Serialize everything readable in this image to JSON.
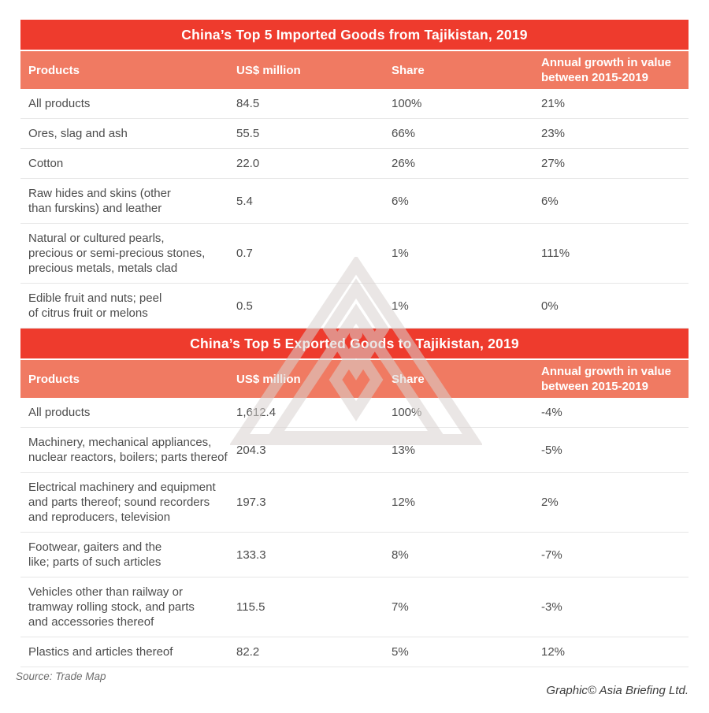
{
  "colors": {
    "accent_red": "#ee3b2d",
    "header_salmon": "#f07a62",
    "row_text": "#4c4c4c",
    "divider": "#e7e7e7"
  },
  "footer": {
    "source": "Source: Trade Map",
    "credit": "Graphic© Asia Briefing Ltd."
  },
  "chart_data": [
    {
      "type": "table",
      "title": "China’s Top 5 Imported Goods from Tajikistan, 2019",
      "columns": [
        "Products",
        "US$ million",
        "Share",
        "Annual growth in value\nbetween 2015-2019"
      ],
      "rows": [
        {
          "product": "All products",
          "usd_million": "84.5",
          "share": "100%",
          "growth": "21%"
        },
        {
          "product": "Ores, slag and ash",
          "usd_million": "55.5",
          "share": "66%",
          "growth": "23%"
        },
        {
          "product": "Cotton",
          "usd_million": "22.0",
          "share": "26%",
          "growth": "27%"
        },
        {
          "product": "Raw hides and skins (other\nthan furskins) and leather",
          "usd_million": "5.4",
          "share": "6%",
          "growth": "6%"
        },
        {
          "product": "Natural or cultured pearls,\nprecious or semi-precious stones,\nprecious metals, metals clad",
          "usd_million": "0.7",
          "share": "1%",
          "growth": "111%"
        },
        {
          "product": "Edible fruit and nuts; peel\nof citrus fruit or melons",
          "usd_million": "0.5",
          "share": "1%",
          "growth": "0%"
        }
      ]
    },
    {
      "type": "table",
      "title": "China’s Top 5 Exported Goods to Tajikistan, 2019",
      "columns": [
        "Products",
        "US$ million",
        "Share",
        "Annual growth in value\nbetween 2015-2019"
      ],
      "rows": [
        {
          "product": "All products",
          "usd_million": "1,612.4",
          "share": "100%",
          "growth": "-4%"
        },
        {
          "product": "Machinery, mechanical appliances,\nnuclear reactors, boilers; parts thereof",
          "usd_million": "204.3",
          "share": "13%",
          "growth": "-5%"
        },
        {
          "product": "Electrical machinery and equipment\nand parts thereof; sound recorders\nand reproducers, television",
          "usd_million": "197.3",
          "share": "12%",
          "growth": "2%"
        },
        {
          "product": "Footwear, gaiters and the\nlike; parts of such articles",
          "usd_million": "133.3",
          "share": "8%",
          "growth": "-7%"
        },
        {
          "product": "Vehicles other than railway or\ntramway rolling stock, and parts\nand accessories thereof",
          "usd_million": "115.5",
          "share": "7%",
          "growth": "-3%"
        },
        {
          "product": "Plastics and articles thereof",
          "usd_million": "82.2",
          "share": "5%",
          "growth": "12%"
        }
      ]
    }
  ]
}
